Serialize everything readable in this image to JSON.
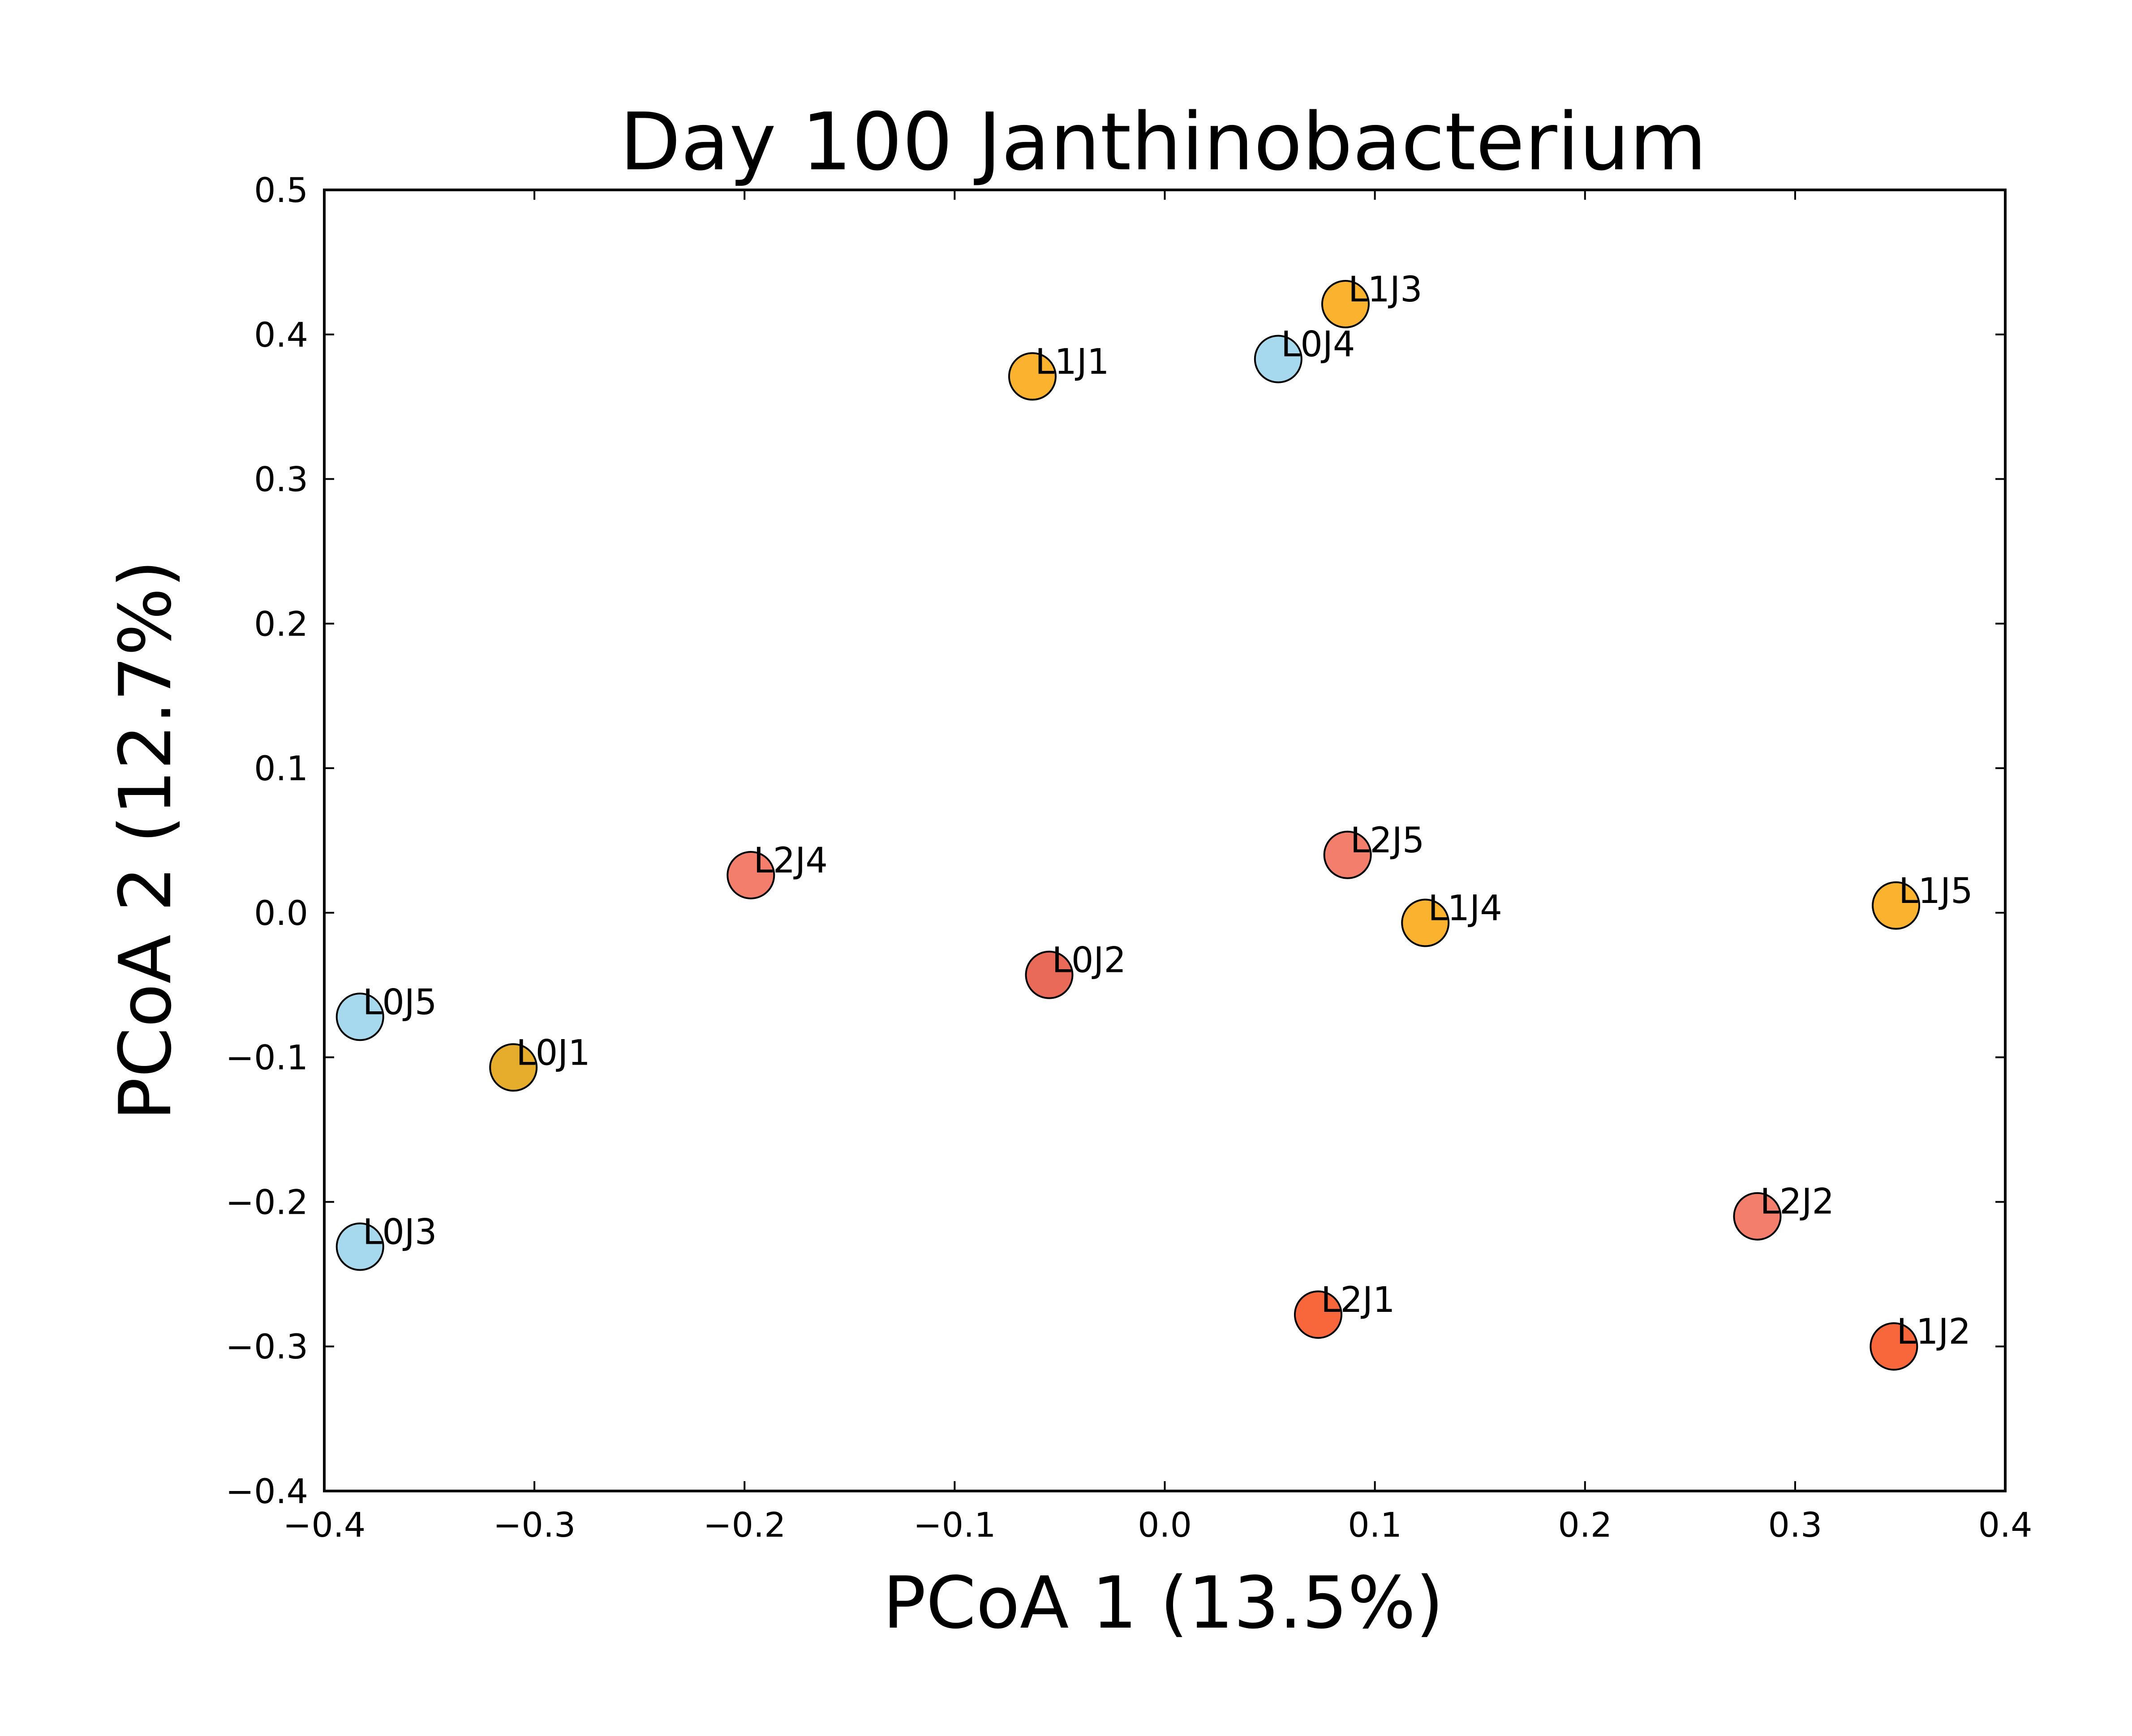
{
  "chart_data": {
    "type": "scatter",
    "title": "Day 100 Janthinobacterium",
    "xlabel": "PCoA 1 (13.5%)",
    "ylabel": "PCoA 2 (12.7%)",
    "xlim": [
      -0.4,
      0.4
    ],
    "ylim": [
      -0.4,
      0.5
    ],
    "xticks": [
      -0.4,
      -0.3,
      -0.2,
      -0.1,
      0.0,
      0.1,
      0.2,
      0.3,
      0.4
    ],
    "xtick_labels": [
      "−0.4",
      "−0.3",
      "−0.2",
      "−0.1",
      "0.0",
      "0.1",
      "0.2",
      "0.3",
      "0.4"
    ],
    "yticks": [
      -0.4,
      -0.3,
      -0.2,
      -0.1,
      0.0,
      0.1,
      0.2,
      0.3,
      0.4,
      0.5
    ],
    "ytick_labels": [
      "−0.4",
      "−0.3",
      "−0.2",
      "−0.1",
      "0.0",
      "0.1",
      "0.2",
      "0.3",
      "0.4",
      "0.5"
    ],
    "grid": false,
    "legend": "none",
    "points": [
      {
        "label": "L1J3",
        "x": 0.086,
        "y": 0.421,
        "color": "#fbb22f"
      },
      {
        "label": "L0J4",
        "x": 0.054,
        "y": 0.383,
        "color": "#a6d9ee"
      },
      {
        "label": "L1J1",
        "x": -0.063,
        "y": 0.371,
        "color": "#fbb22f"
      },
      {
        "label": "L2J5",
        "x": 0.087,
        "y": 0.04,
        "color": "#f47e6c"
      },
      {
        "label": "L2J4",
        "x": -0.197,
        "y": 0.026,
        "color": "#f47e6c"
      },
      {
        "label": "L1J5",
        "x": 0.348,
        "y": 0.005,
        "color": "#fbb22f"
      },
      {
        "label": "L1J4",
        "x": 0.124,
        "y": -0.007,
        "color": "#fbb22f"
      },
      {
        "label": "L0J2",
        "x": -0.055,
        "y": -0.043,
        "color": "#ea6a59"
      },
      {
        "label": "L0J5",
        "x": -0.383,
        "y": -0.072,
        "color": "#a6d9ee"
      },
      {
        "label": "L0J1",
        "x": -0.31,
        "y": -0.107,
        "color": "#e6ac2b"
      },
      {
        "label": "L2J2",
        "x": 0.282,
        "y": -0.21,
        "color": "#f47e6c"
      },
      {
        "label": "L0J3",
        "x": -0.383,
        "y": -0.231,
        "color": "#a6d9ee"
      },
      {
        "label": "L2J1",
        "x": 0.073,
        "y": -0.278,
        "color": "#f8673c"
      },
      {
        "label": "L1J2",
        "x": 0.347,
        "y": -0.3,
        "color": "#f8673c"
      }
    ]
  }
}
